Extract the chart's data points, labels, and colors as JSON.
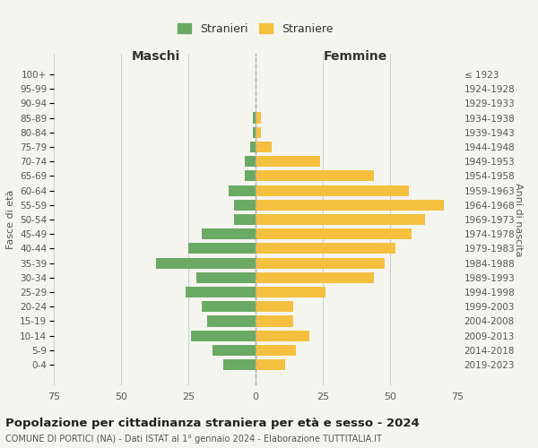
{
  "age_groups": [
    "0-4",
    "5-9",
    "10-14",
    "15-19",
    "20-24",
    "25-29",
    "30-34",
    "35-39",
    "40-44",
    "45-49",
    "50-54",
    "55-59",
    "60-64",
    "65-69",
    "70-74",
    "75-79",
    "80-84",
    "85-89",
    "90-94",
    "95-99",
    "100+"
  ],
  "birth_years": [
    "2019-2023",
    "2014-2018",
    "2009-2013",
    "2004-2008",
    "1999-2003",
    "1994-1998",
    "1989-1993",
    "1984-1988",
    "1979-1983",
    "1974-1978",
    "1969-1973",
    "1964-1968",
    "1959-1963",
    "1954-1958",
    "1949-1953",
    "1944-1948",
    "1939-1943",
    "1934-1938",
    "1929-1933",
    "1924-1928",
    "≤ 1923"
  ],
  "maschi": [
    12,
    16,
    24,
    18,
    20,
    26,
    22,
    37,
    25,
    20,
    8,
    8,
    10,
    4,
    4,
    2,
    1,
    1,
    0,
    0,
    0
  ],
  "femmine": [
    11,
    15,
    20,
    14,
    14,
    26,
    44,
    48,
    52,
    58,
    63,
    70,
    57,
    44,
    24,
    6,
    2,
    2,
    0,
    0,
    0
  ],
  "maschi_color": "#6aaa64",
  "femmine_color": "#f5c040",
  "background_color": "#f5f5f0",
  "title": "Popolazione per cittadinanza straniera per età e sesso - 2024",
  "subtitle": "COMUNE DI PORTICI (NA) - Dati ISTAT al 1° gennaio 2024 - Elaborazione TUTTITALIA.IT",
  "xlabel_left": "Maschi",
  "xlabel_right": "Femmine",
  "ylabel_left": "Fasce di età",
  "ylabel_right": "Anni di nascita",
  "legend_maschi": "Stranieri",
  "legend_femmine": "Straniere",
  "xlim": 75,
  "grid_color": "#cccccc"
}
